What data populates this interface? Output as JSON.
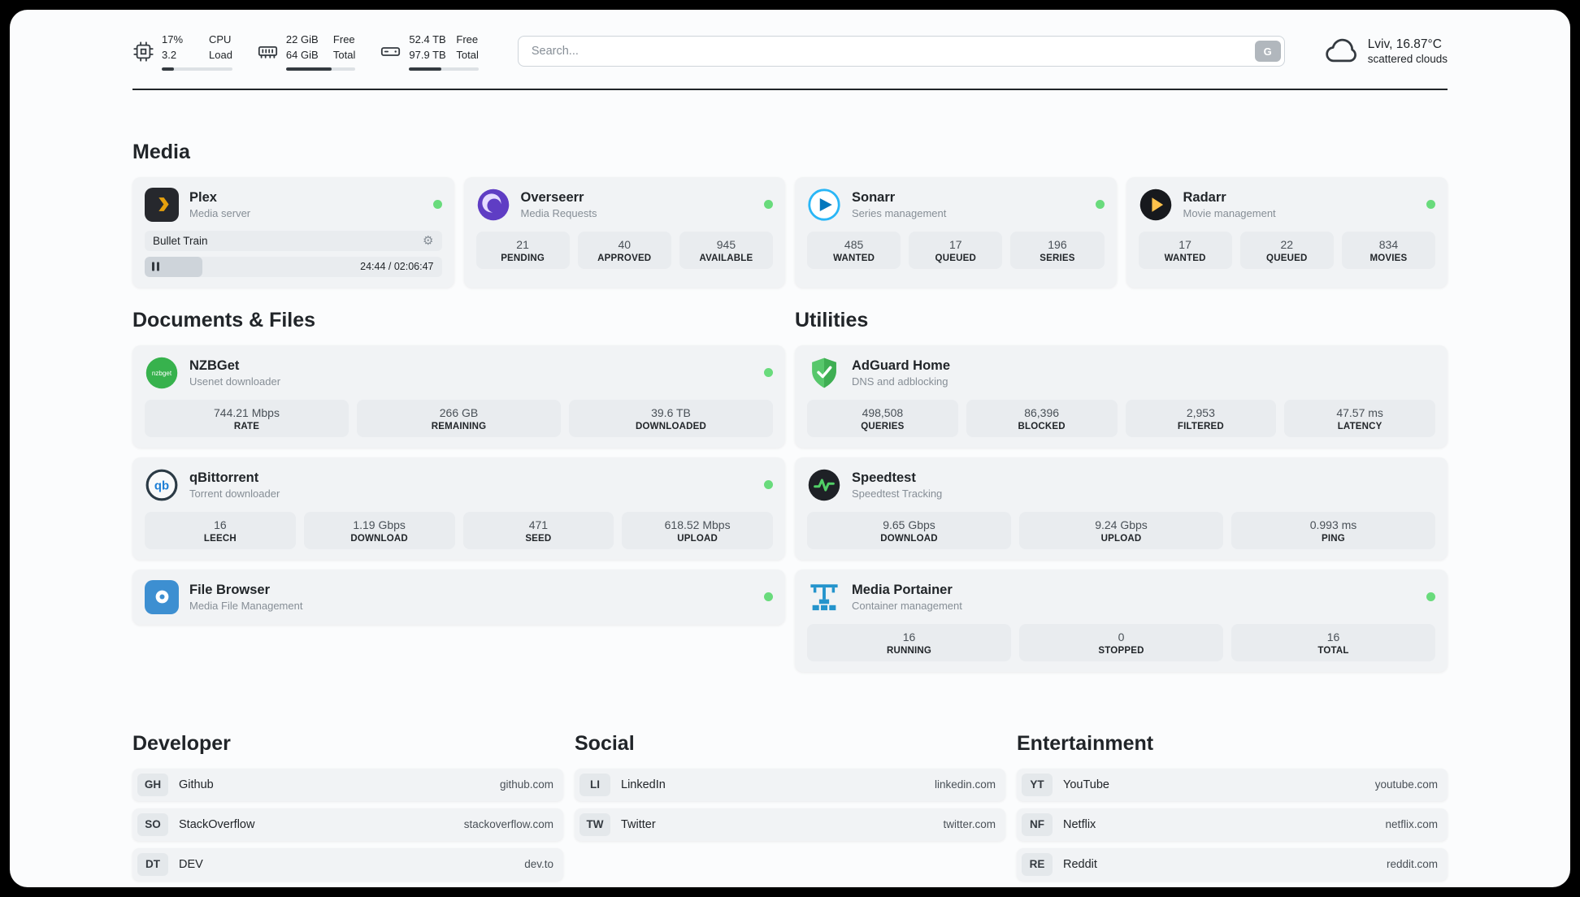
{
  "header": {
    "cpu": {
      "value_top": "17%",
      "value_bottom": "3.2",
      "label_top": "CPU",
      "label_bottom": "Load",
      "bar_percent": 17
    },
    "ram": {
      "value_top": "22 GiB",
      "value_bottom": "64 GiB",
      "label_top": "Free",
      "label_bottom": "Total",
      "bar_percent": 66
    },
    "disk": {
      "value_top": "52.4 TB",
      "value_bottom": "97.9 TB",
      "label_top": "Free",
      "label_bottom": "Total",
      "bar_percent": 46
    },
    "search": {
      "placeholder": "Search...",
      "button_label": "G"
    },
    "weather": {
      "location": "Lviv, 16.87°C",
      "condition": "scattered clouds"
    }
  },
  "sections": {
    "media": "Media",
    "documents": "Documents & Files",
    "utilities": "Utilities",
    "developer": "Developer",
    "social": "Social",
    "entertainment": "Entertainment"
  },
  "plex": {
    "name": "Plex",
    "subtitle": "Media server",
    "now_playing": "Bullet Train",
    "time": "24:44 / 02:06:47",
    "progress_percent": 19.5
  },
  "overseerr": {
    "name": "Overseerr",
    "subtitle": "Media Requests",
    "stats": [
      {
        "value": "21",
        "label": "PENDING"
      },
      {
        "value": "40",
        "label": "APPROVED"
      },
      {
        "value": "945",
        "label": "AVAILABLE"
      }
    ]
  },
  "sonarr": {
    "name": "Sonarr",
    "subtitle": "Series management",
    "stats": [
      {
        "value": "485",
        "label": "WANTED"
      },
      {
        "value": "17",
        "label": "QUEUED"
      },
      {
        "value": "196",
        "label": "SERIES"
      }
    ]
  },
  "radarr": {
    "name": "Radarr",
    "subtitle": "Movie management",
    "stats": [
      {
        "value": "17",
        "label": "WANTED"
      },
      {
        "value": "22",
        "label": "QUEUED"
      },
      {
        "value": "834",
        "label": "MOVIES"
      }
    ]
  },
  "nzbget": {
    "name": "NZBGet",
    "subtitle": "Usenet downloader",
    "icon_text": "nzbget",
    "stats": [
      {
        "value": "744.21 Mbps",
        "label": "RATE"
      },
      {
        "value": "266 GB",
        "label": "REMAINING"
      },
      {
        "value": "39.6 TB",
        "label": "DOWNLOADED"
      }
    ]
  },
  "qbittorrent": {
    "name": "qBittorrent",
    "subtitle": "Torrent downloader",
    "icon_text": "qb",
    "stats": [
      {
        "value": "16",
        "label": "LEECH"
      },
      {
        "value": "1.19 Gbps",
        "label": "DOWNLOAD"
      },
      {
        "value": "471",
        "label": "SEED"
      },
      {
        "value": "618.52 Mbps",
        "label": "UPLOAD"
      }
    ]
  },
  "filebrowser": {
    "name": "File Browser",
    "subtitle": "Media File Management"
  },
  "adguard": {
    "name": "AdGuard Home",
    "subtitle": "DNS and adblocking",
    "stats": [
      {
        "value": "498,508",
        "label": "QUERIES"
      },
      {
        "value": "86,396",
        "label": "BLOCKED"
      },
      {
        "value": "2,953",
        "label": "FILTERED"
      },
      {
        "value": "47.57 ms",
        "label": "LATENCY"
      }
    ]
  },
  "speedtest": {
    "name": "Speedtest",
    "subtitle": "Speedtest Tracking",
    "stats": [
      {
        "value": "9.65 Gbps",
        "label": "DOWNLOAD"
      },
      {
        "value": "9.24 Gbps",
        "label": "UPLOAD"
      },
      {
        "value": "0.993 ms",
        "label": "PING"
      }
    ]
  },
  "portainer": {
    "name": "Media Portainer",
    "subtitle": "Container management",
    "stats": [
      {
        "value": "16",
        "label": "RUNNING"
      },
      {
        "value": "0",
        "label": "STOPPED"
      },
      {
        "value": "16",
        "label": "TOTAL"
      }
    ]
  },
  "bookmarks": {
    "developer": [
      {
        "abbr": "GH",
        "name": "Github",
        "url": "github.com"
      },
      {
        "abbr": "SO",
        "name": "StackOverflow",
        "url": "stackoverflow.com"
      },
      {
        "abbr": "DT",
        "name": "DEV",
        "url": "dev.to"
      }
    ],
    "social": [
      {
        "abbr": "LI",
        "name": "LinkedIn",
        "url": "linkedin.com"
      },
      {
        "abbr": "TW",
        "name": "Twitter",
        "url": "twitter.com"
      }
    ],
    "entertainment": [
      {
        "abbr": "YT",
        "name": "YouTube",
        "url": "youtube.com"
      },
      {
        "abbr": "NF",
        "name": "Netflix",
        "url": "netflix.com"
      },
      {
        "abbr": "RE",
        "name": "Reddit",
        "url": "reddit.com"
      }
    ]
  },
  "colors": {
    "status_online": "#69db7c",
    "plex_accent": "#e5a00d"
  }
}
